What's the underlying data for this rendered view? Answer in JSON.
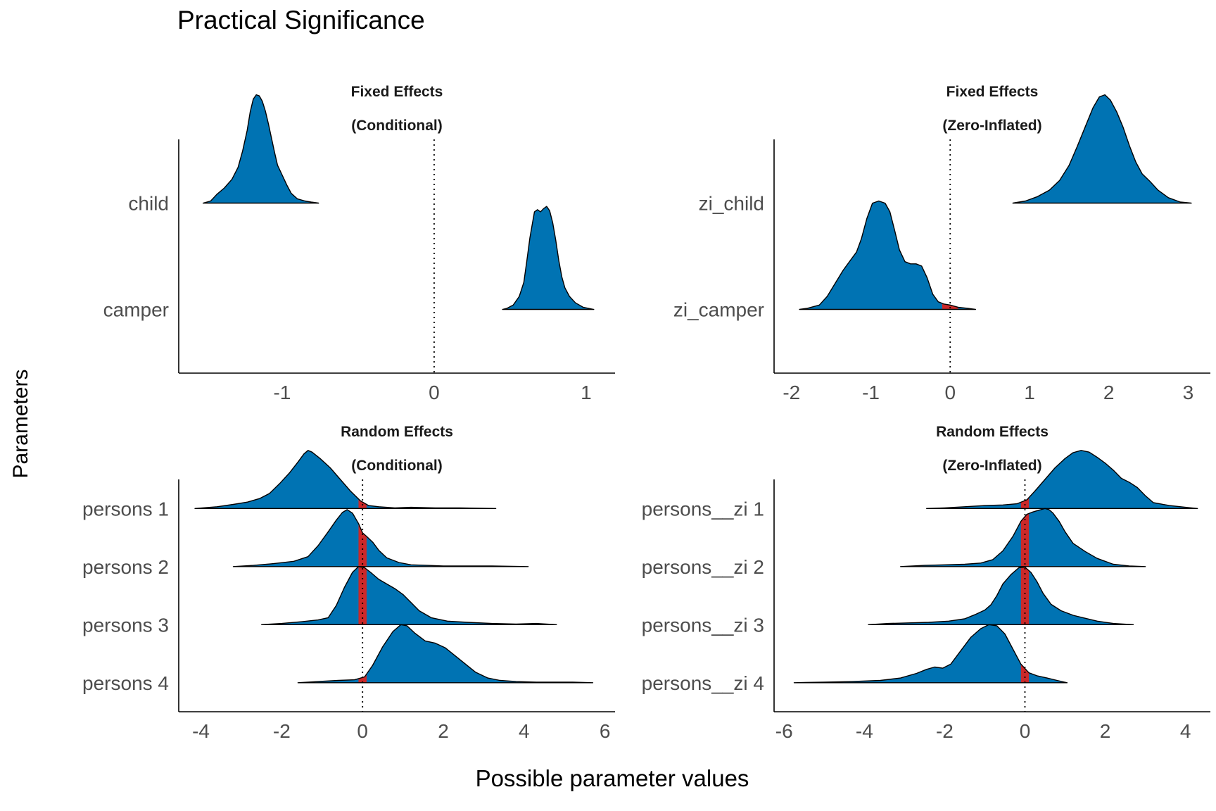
{
  "title": "Practical Significance",
  "ylabel": "Parameters",
  "xlabel": "Possible parameter values",
  "colors": {
    "fill": "#0073b3",
    "rope": "#cc2929",
    "outline": "#000000"
  },
  "chart_data": [
    {
      "type": "area",
      "strip": [
        "Fixed Effects",
        "(Conditional)"
      ],
      "xlim": [
        -1.68,
        1.19
      ],
      "xticks": [
        -1,
        0,
        1
      ],
      "xtick_labels": [
        "-1",
        "0",
        "1"
      ],
      "rows": [
        "child",
        "camper"
      ],
      "row_extent": [
        0.4,
        2.6
      ],
      "scale": 1.02,
      "reference_line": 0,
      "grid": false,
      "series": [
        {
          "name": "child",
          "row": 2,
          "color": "#0073b3",
          "x": [
            -1.52,
            -1.47,
            -1.43,
            -1.38,
            -1.33,
            -1.29,
            -1.26,
            -1.23,
            -1.21,
            -1.19,
            -1.17,
            -1.15,
            -1.13,
            -1.11,
            -1.09,
            -1.07,
            -1.05,
            -1.03,
            -1.0,
            -0.97,
            -0.94,
            -0.9,
            -0.85,
            -0.81,
            -0.76
          ],
          "y": [
            0.0,
            0.02,
            0.08,
            0.14,
            0.22,
            0.33,
            0.48,
            0.67,
            0.84,
            0.96,
            1.0,
            0.99,
            0.94,
            0.85,
            0.73,
            0.6,
            0.47,
            0.35,
            0.26,
            0.17,
            0.09,
            0.04,
            0.02,
            0.01,
            0.0
          ],
          "rope": null
        },
        {
          "name": "camper",
          "row": 1,
          "color": "#0073b3",
          "x": [
            0.45,
            0.48,
            0.52,
            0.56,
            0.59,
            0.61,
            0.63,
            0.65,
            0.66,
            0.68,
            0.7,
            0.72,
            0.74,
            0.76,
            0.78,
            0.8,
            0.82,
            0.84,
            0.86,
            0.89,
            0.93,
            0.98,
            1.05
          ],
          "y": [
            0.0,
            0.01,
            0.04,
            0.12,
            0.25,
            0.45,
            0.66,
            0.82,
            0.9,
            0.92,
            0.9,
            0.93,
            0.95,
            0.91,
            0.8,
            0.64,
            0.45,
            0.3,
            0.2,
            0.12,
            0.06,
            0.02,
            0.0
          ],
          "rope": null
        }
      ]
    },
    {
      "type": "area",
      "strip": [
        "Fixed Effects",
        "(Zero-Inflated)"
      ],
      "xlim": [
        -2.22,
        3.28
      ],
      "xticks": [
        -2,
        -1,
        0,
        1,
        2,
        3
      ],
      "xtick_labels": [
        "-2",
        "-1",
        "0",
        "1",
        "2",
        "3"
      ],
      "rows": [
        "zi_child",
        "zi_camper"
      ],
      "row_extent": [
        0.4,
        2.6
      ],
      "scale": 1.02,
      "reference_line": 0,
      "grid": false,
      "series": [
        {
          "name": "zi_child",
          "row": 2,
          "color": "#0073b3",
          "x": [
            0.79,
            0.95,
            1.1,
            1.25,
            1.38,
            1.5,
            1.6,
            1.7,
            1.8,
            1.88,
            1.95,
            2.02,
            2.1,
            2.18,
            2.26,
            2.34,
            2.42,
            2.52,
            2.62,
            2.75,
            2.9,
            3.04
          ],
          "y": [
            0.0,
            0.02,
            0.06,
            0.12,
            0.21,
            0.35,
            0.52,
            0.7,
            0.88,
            0.98,
            1.0,
            0.95,
            0.84,
            0.7,
            0.53,
            0.38,
            0.27,
            0.2,
            0.12,
            0.05,
            0.01,
            0.0
          ],
          "rope": null
        },
        {
          "name": "zi_camper",
          "row": 1,
          "color": "#0073b3",
          "x": [
            -1.9,
            -1.8,
            -1.65,
            -1.55,
            -1.45,
            -1.35,
            -1.25,
            -1.18,
            -1.12,
            -1.05,
            -0.98,
            -0.9,
            -0.82,
            -0.76,
            -0.7,
            -0.64,
            -0.57,
            -0.5,
            -0.43,
            -0.36,
            -0.29,
            -0.22,
            -0.15,
            -0.08,
            0.0,
            0.1,
            0.22,
            0.32
          ],
          "y": [
            0.0,
            0.01,
            0.04,
            0.12,
            0.24,
            0.36,
            0.46,
            0.53,
            0.65,
            0.84,
            0.98,
            1.0,
            0.98,
            0.9,
            0.73,
            0.55,
            0.44,
            0.42,
            0.42,
            0.4,
            0.29,
            0.14,
            0.07,
            0.05,
            0.04,
            0.02,
            0.01,
            0.0
          ],
          "rope": [
            -0.1,
            0.1
          ]
        }
      ]
    },
    {
      "type": "area",
      "strip": [
        "Random Effects",
        "(Conditional)"
      ],
      "xlim": [
        -4.55,
        6.25
      ],
      "xticks": [
        -4,
        -2,
        0,
        2,
        4,
        6
      ],
      "xtick_labels": [
        "-4",
        "-2",
        "0",
        "2",
        "4",
        "6"
      ],
      "rows": [
        "persons 1",
        "persons 2",
        "persons 3",
        "persons 4"
      ],
      "row_extent": [
        0.5,
        4.5
      ],
      "scale": 1.0,
      "reference_line": 0,
      "grid": false,
      "series": [
        {
          "name": "persons 1",
          "row": 4,
          "color": "#0073b3",
          "x": [
            -4.15,
            -3.6,
            -3.2,
            -2.85,
            -2.55,
            -2.3,
            -2.05,
            -1.8,
            -1.6,
            -1.45,
            -1.35,
            -1.25,
            -1.05,
            -0.8,
            -0.55,
            -0.3,
            -0.05,
            0.15,
            0.4,
            0.8,
            1.2,
            1.8,
            2.4,
            3.3
          ],
          "y": [
            0.0,
            0.03,
            0.07,
            0.11,
            0.17,
            0.26,
            0.43,
            0.62,
            0.8,
            0.94,
            1.0,
            0.97,
            0.86,
            0.7,
            0.5,
            0.3,
            0.13,
            0.05,
            0.03,
            0.01,
            0.02,
            0.01,
            0.01,
            0.0
          ],
          "rope": [
            -0.1,
            0.1
          ]
        },
        {
          "name": "persons 2",
          "row": 3,
          "color": "#0073b3",
          "x": [
            -3.2,
            -2.7,
            -2.2,
            -1.7,
            -1.35,
            -1.1,
            -0.85,
            -0.65,
            -0.5,
            -0.38,
            -0.25,
            -0.1,
            0.0,
            0.1,
            0.25,
            0.4,
            0.6,
            0.9,
            1.2,
            1.6,
            2.0,
            2.6,
            3.2,
            4.1
          ],
          "y": [
            0.0,
            0.02,
            0.05,
            0.09,
            0.17,
            0.36,
            0.6,
            0.8,
            0.93,
            0.98,
            0.92,
            0.74,
            0.58,
            0.52,
            0.42,
            0.28,
            0.15,
            0.07,
            0.03,
            0.02,
            0.01,
            0.01,
            0.01,
            0.0
          ],
          "rope": [
            -0.1,
            0.1
          ]
        },
        {
          "name": "persons 3",
          "row": 2,
          "color": "#0073b3",
          "x": [
            -2.5,
            -2.0,
            -1.5,
            -1.1,
            -0.85,
            -0.65,
            -0.45,
            -0.25,
            -0.1,
            0.05,
            0.2,
            0.4,
            0.6,
            0.8,
            1.0,
            1.2,
            1.4,
            1.7,
            2.1,
            2.6,
            3.2,
            3.8,
            4.3,
            4.8
          ],
          "y": [
            0.0,
            0.02,
            0.05,
            0.08,
            0.12,
            0.33,
            0.64,
            0.9,
            1.0,
            0.98,
            0.9,
            0.78,
            0.7,
            0.62,
            0.52,
            0.38,
            0.24,
            0.12,
            0.06,
            0.04,
            0.02,
            0.01,
            0.02,
            0.0
          ],
          "rope": [
            -0.1,
            0.1
          ]
        },
        {
          "name": "persons 4",
          "row": 1,
          "color": "#0073b3",
          "x": [
            -1.6,
            -1.1,
            -0.6,
            -0.2,
            0.05,
            0.25,
            0.5,
            0.75,
            0.95,
            1.1,
            1.3,
            1.55,
            1.8,
            2.05,
            2.3,
            2.55,
            2.8,
            3.1,
            3.4,
            3.8,
            4.3,
            4.8,
            5.2,
            5.7
          ],
          "y": [
            0.0,
            0.02,
            0.04,
            0.05,
            0.1,
            0.3,
            0.62,
            0.88,
            1.0,
            0.98,
            0.85,
            0.72,
            0.68,
            0.6,
            0.46,
            0.32,
            0.18,
            0.08,
            0.04,
            0.02,
            0.01,
            0.01,
            0.01,
            0.0
          ],
          "rope": [
            -0.1,
            0.1
          ]
        }
      ]
    },
    {
      "type": "area",
      "strip": [
        "Random Effects",
        "(Zero-Inflated)"
      ],
      "xlim": [
        -6.25,
        4.62
      ],
      "xticks": [
        -6,
        -4,
        -2,
        0,
        2,
        4
      ],
      "xtick_labels": [
        "-6",
        "-4",
        "-2",
        "0",
        "2",
        "4"
      ],
      "rows": [
        "persons__zi 1",
        "persons__zi 2",
        "persons__zi 3",
        "persons__zi 4"
      ],
      "row_extent": [
        0.5,
        4.5
      ],
      "scale": 1.0,
      "reference_line": 0,
      "grid": false,
      "series": [
        {
          "name": "persons__zi 1",
          "row": 4,
          "color": "#0073b3",
          "x": [
            -2.45,
            -2.0,
            -1.5,
            -1.0,
            -0.55,
            -0.2,
            0.05,
            0.25,
            0.5,
            0.75,
            1.0,
            1.2,
            1.4,
            1.6,
            1.8,
            2.0,
            2.2,
            2.4,
            2.6,
            2.8,
            3.0,
            3.2,
            3.6,
            4.0,
            4.3
          ],
          "y": [
            0.0,
            0.01,
            0.03,
            0.05,
            0.06,
            0.08,
            0.15,
            0.3,
            0.5,
            0.7,
            0.86,
            0.96,
            1.0,
            0.97,
            0.88,
            0.78,
            0.66,
            0.52,
            0.45,
            0.36,
            0.22,
            0.1,
            0.05,
            0.02,
            0.0
          ],
          "rope": [
            -0.1,
            0.1
          ]
        },
        {
          "name": "persons__zi 2",
          "row": 3,
          "color": "#0073b3",
          "x": [
            -3.1,
            -2.5,
            -2.0,
            -1.5,
            -1.1,
            -0.8,
            -0.55,
            -0.3,
            -0.1,
            0.05,
            0.2,
            0.35,
            0.5,
            0.6,
            0.7,
            0.85,
            1.0,
            1.2,
            1.5,
            1.8,
            2.2,
            2.6,
            3.0
          ],
          "y": [
            0.0,
            0.02,
            0.03,
            0.04,
            0.06,
            0.12,
            0.27,
            0.52,
            0.78,
            0.9,
            0.94,
            0.97,
            1.0,
            0.98,
            0.92,
            0.78,
            0.6,
            0.4,
            0.26,
            0.14,
            0.04,
            0.01,
            0.0
          ],
          "rope": [
            -0.1,
            0.1
          ]
        },
        {
          "name": "persons__zi 3",
          "row": 2,
          "color": "#0073b3",
          "x": [
            -3.9,
            -3.4,
            -2.9,
            -2.4,
            -1.9,
            -1.5,
            -1.25,
            -1.0,
            -0.85,
            -0.7,
            -0.55,
            -0.35,
            -0.15,
            0.0,
            0.15,
            0.3,
            0.45,
            0.65,
            0.9,
            1.2,
            1.5,
            1.8,
            2.2,
            2.7
          ],
          "y": [
            0.0,
            0.02,
            0.03,
            0.04,
            0.06,
            0.1,
            0.17,
            0.25,
            0.34,
            0.5,
            0.7,
            0.86,
            0.98,
            0.99,
            0.9,
            0.74,
            0.54,
            0.35,
            0.24,
            0.16,
            0.11,
            0.06,
            0.02,
            0.0
          ],
          "rope": [
            -0.1,
            0.1
          ]
        },
        {
          "name": "persons__zi 4",
          "row": 1,
          "color": "#0073b3",
          "x": [
            -5.75,
            -5.0,
            -4.3,
            -3.6,
            -3.1,
            -2.7,
            -2.45,
            -2.25,
            -2.05,
            -1.85,
            -1.6,
            -1.35,
            -1.1,
            -0.9,
            -0.7,
            -0.5,
            -0.3,
            -0.1,
            0.1,
            0.3,
            0.55,
            0.8,
            1.05
          ],
          "y": [
            0.0,
            0.01,
            0.02,
            0.04,
            0.08,
            0.16,
            0.23,
            0.27,
            0.25,
            0.32,
            0.55,
            0.78,
            0.93,
            1.0,
            0.98,
            0.84,
            0.58,
            0.32,
            0.17,
            0.12,
            0.08,
            0.04,
            0.0
          ],
          "rope": [
            -0.1,
            0.1
          ]
        }
      ]
    }
  ]
}
